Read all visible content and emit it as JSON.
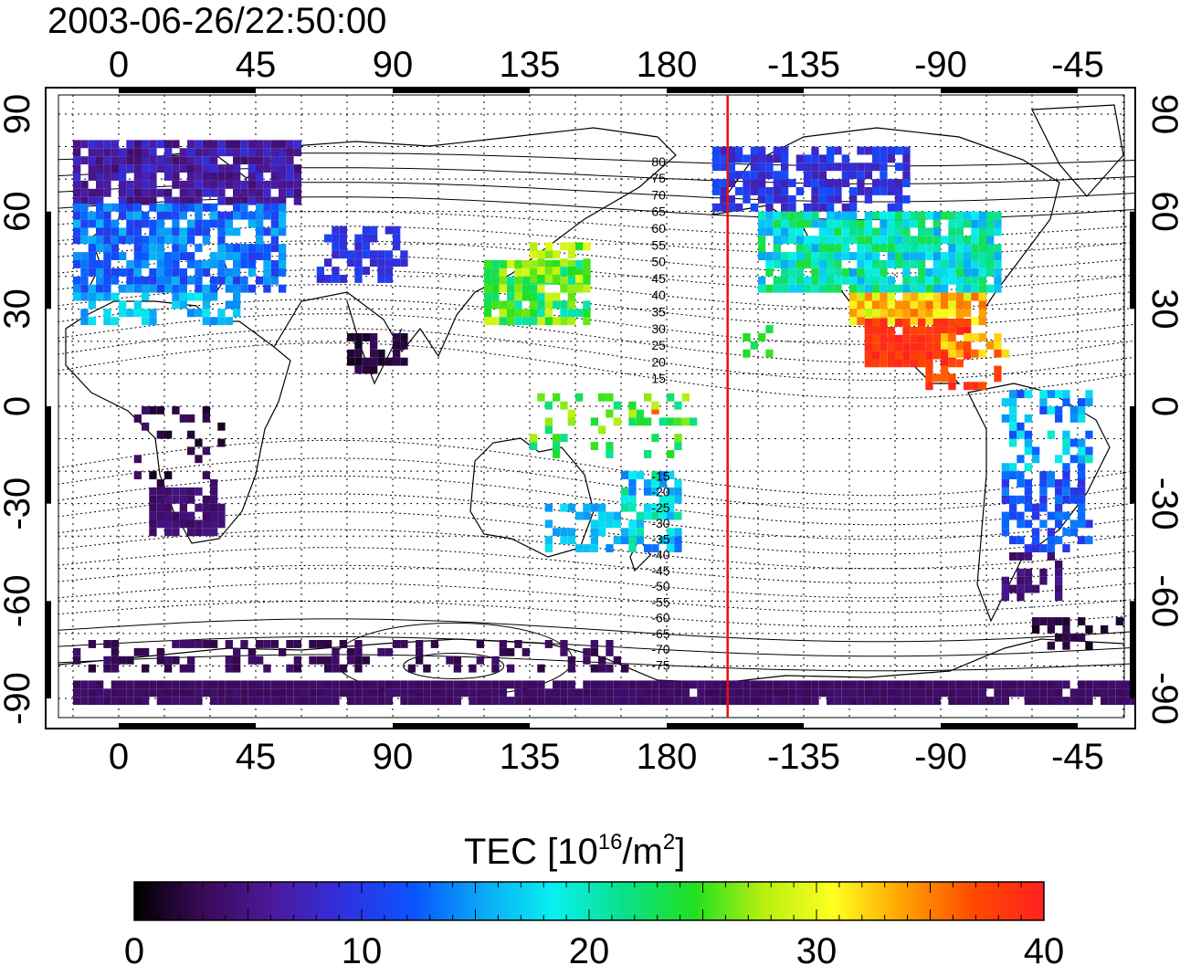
{
  "title": "2003-06-26/22:50:00",
  "map": {
    "lon_top_ticks": [
      "0",
      "45",
      "90",
      "135",
      "180",
      "-135",
      "-90",
      "-45"
    ],
    "lon_bottom_ticks": [
      "0",
      "45",
      "90",
      "135",
      "180",
      "-135",
      "-90",
      "-45"
    ],
    "lat_left_ticks": [
      "90",
      "60",
      "30",
      "0",
      "-30",
      "-60",
      "-90"
    ],
    "lat_right_ticks": [
      "90",
      "60",
      "30",
      "0",
      "-30",
      "-60",
      "-90"
    ],
    "magnetic_latitude_labels": [
      "80",
      "75",
      "70",
      "65",
      "60",
      "55",
      "50",
      "45",
      "40",
      "35",
      "30",
      "25",
      "20",
      "15",
      "-15",
      "-20",
      "-25",
      "-30",
      "-35",
      "-40",
      "-45",
      "-50",
      "-55",
      "-60",
      "-65",
      "-70",
      "-75"
    ],
    "terminator_longitude": -160,
    "colors": {
      "terminator": "#e8100f",
      "frame": "#000000",
      "grid": "#000000"
    }
  },
  "colorbar": {
    "label_main": "TEC  [10",
    "label_sup1": "16",
    "label_mid": "/m",
    "label_sup2": "2",
    "label_end": "]",
    "min": 0,
    "max": 40,
    "ticks": [
      "0",
      "10",
      "20",
      "30",
      "40"
    ],
    "stops": [
      "#000000",
      "#3b0a5a",
      "#4b1a9c",
      "#3030e0",
      "#0a55ff",
      "#0aaaf5",
      "#08f0f0",
      "#0ae08a",
      "#20e020",
      "#b8f010",
      "#ffff20",
      "#ffa000",
      "#ff4a00",
      "#ff2020"
    ]
  }
}
